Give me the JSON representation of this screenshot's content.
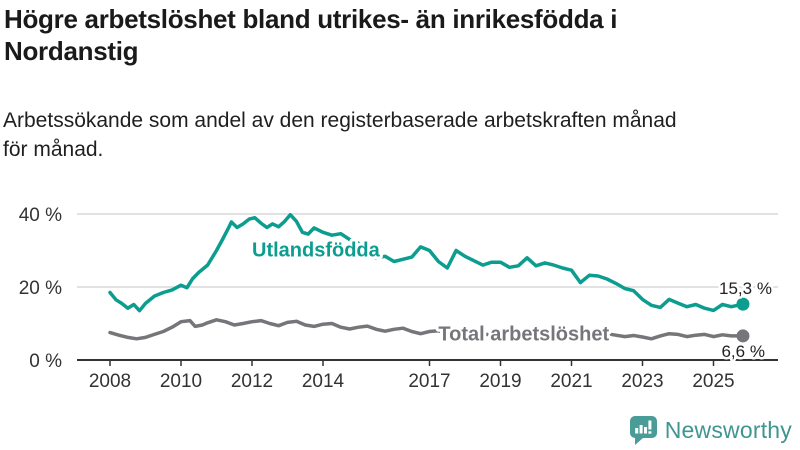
{
  "header": {
    "title_lines": [
      "Högre arbetslöshet bland utrikes- än inrikesfödda i",
      "Nordanstig"
    ],
    "subtitle_lines": [
      "Arbetssökande som andel av den registerbaserade arbetskraften månad",
      "för månad."
    ]
  },
  "chart_data": {
    "type": "line",
    "title": "Högre arbetslöshet bland utrikes- än inrikesfödda i Nordanstig",
    "subtitle": "Arbetssökande som andel av den registerbaserade arbetskraften månad för månad.",
    "xlabel": "",
    "ylabel": "",
    "grid": "horizontal",
    "legend_position": "inline-labels",
    "x_axis": {
      "range": [
        2007.1,
        2026.8
      ],
      "ticks": [
        2008,
        2010,
        2012,
        2014,
        2017,
        2019,
        2021,
        2023,
        2025
      ],
      "tick_labels": [
        "2008",
        "2010",
        "2012",
        "2014",
        "2017",
        "2019",
        "2021",
        "2023",
        "2025"
      ]
    },
    "y_axis": {
      "unit": "%",
      "range": [
        0,
        43
      ],
      "ticks": [
        0,
        20,
        40
      ],
      "tick_labels": [
        "0 %",
        "20 %",
        "40 %"
      ]
    },
    "series": [
      {
        "name": "Utlandsfödda",
        "color": "#0b9d8f",
        "end_label": "15,3 %",
        "end_value": 15.3,
        "label_anchor": {
          "x": 2012.0,
          "y": 30.3
        },
        "points": [
          [
            2008.0,
            18.5
          ],
          [
            2008.17,
            16.5
          ],
          [
            2008.33,
            15.5
          ],
          [
            2008.5,
            14.2
          ],
          [
            2008.67,
            15.2
          ],
          [
            2008.83,
            13.5
          ],
          [
            2009.0,
            15.5
          ],
          [
            2009.25,
            17.5
          ],
          [
            2009.5,
            18.5
          ],
          [
            2009.75,
            19.2
          ],
          [
            2010.0,
            20.5
          ],
          [
            2010.17,
            19.8
          ],
          [
            2010.33,
            22.3
          ],
          [
            2010.5,
            24.0
          ],
          [
            2010.75,
            26.0
          ],
          [
            2011.0,
            30.0
          ],
          [
            2011.17,
            33.0
          ],
          [
            2011.33,
            36.0
          ],
          [
            2011.42,
            37.8
          ],
          [
            2011.58,
            36.3
          ],
          [
            2011.75,
            37.3
          ],
          [
            2011.92,
            38.6
          ],
          [
            2012.08,
            39.0
          ],
          [
            2012.25,
            37.5
          ],
          [
            2012.42,
            36.3
          ],
          [
            2012.58,
            37.3
          ],
          [
            2012.75,
            36.5
          ],
          [
            2012.92,
            38.0
          ],
          [
            2013.08,
            39.8
          ],
          [
            2013.25,
            38.0
          ],
          [
            2013.42,
            35.0
          ],
          [
            2013.58,
            34.5
          ],
          [
            2013.75,
            36.2
          ],
          [
            2014.0,
            35.0
          ],
          [
            2014.25,
            34.2
          ],
          [
            2014.5,
            34.6
          ],
          [
            2014.75,
            33.0
          ],
          [
            2015.0,
            32.0
          ],
          [
            2015.25,
            28.6
          ],
          [
            2015.5,
            28.0
          ],
          [
            2015.75,
            28.4
          ],
          [
            2016.0,
            27.0
          ],
          [
            2016.25,
            27.6
          ],
          [
            2016.5,
            28.2
          ],
          [
            2016.75,
            31.0
          ],
          [
            2017.0,
            30.0
          ],
          [
            2017.25,
            27.0
          ],
          [
            2017.5,
            25.2
          ],
          [
            2017.75,
            30.0
          ],
          [
            2018.0,
            28.4
          ],
          [
            2018.25,
            27.2
          ],
          [
            2018.5,
            26.0
          ],
          [
            2018.75,
            26.8
          ],
          [
            2019.0,
            26.8
          ],
          [
            2019.25,
            25.4
          ],
          [
            2019.5,
            25.8
          ],
          [
            2019.75,
            28.0
          ],
          [
            2020.0,
            25.8
          ],
          [
            2020.25,
            26.6
          ],
          [
            2020.5,
            26.0
          ],
          [
            2020.75,
            25.2
          ],
          [
            2021.0,
            24.6
          ],
          [
            2021.25,
            21.2
          ],
          [
            2021.5,
            23.2
          ],
          [
            2021.75,
            23.0
          ],
          [
            2022.0,
            22.2
          ],
          [
            2022.25,
            21.0
          ],
          [
            2022.5,
            19.6
          ],
          [
            2022.75,
            19.0
          ],
          [
            2023.0,
            16.6
          ],
          [
            2023.25,
            15.0
          ],
          [
            2023.5,
            14.4
          ],
          [
            2023.75,
            16.6
          ],
          [
            2024.0,
            15.6
          ],
          [
            2024.25,
            14.6
          ],
          [
            2024.5,
            15.2
          ],
          [
            2024.75,
            14.2
          ],
          [
            2025.0,
            13.6
          ],
          [
            2025.25,
            15.2
          ],
          [
            2025.5,
            14.6
          ],
          [
            2025.83,
            15.3
          ]
        ]
      },
      {
        "name": "Total arbetslöshet",
        "color": "#76767a",
        "end_label": "6,6 %",
        "end_value": 6.6,
        "label_anchor": {
          "x": 2017.25,
          "y": 7.3
        },
        "points": [
          [
            2008.0,
            7.5
          ],
          [
            2008.25,
            6.8
          ],
          [
            2008.5,
            6.2
          ],
          [
            2008.75,
            5.8
          ],
          [
            2009.0,
            6.2
          ],
          [
            2009.25,
            7.0
          ],
          [
            2009.5,
            7.8
          ],
          [
            2009.75,
            9.0
          ],
          [
            2010.0,
            10.5
          ],
          [
            2010.25,
            10.8
          ],
          [
            2010.4,
            9.2
          ],
          [
            2010.6,
            9.6
          ],
          [
            2010.75,
            10.2
          ],
          [
            2011.0,
            11.0
          ],
          [
            2011.25,
            10.5
          ],
          [
            2011.5,
            9.6
          ],
          [
            2011.75,
            10.0
          ],
          [
            2012.0,
            10.5
          ],
          [
            2012.25,
            10.8
          ],
          [
            2012.5,
            10.0
          ],
          [
            2012.75,
            9.4
          ],
          [
            2013.0,
            10.3
          ],
          [
            2013.25,
            10.6
          ],
          [
            2013.5,
            9.6
          ],
          [
            2013.75,
            9.2
          ],
          [
            2014.0,
            9.8
          ],
          [
            2014.25,
            10.0
          ],
          [
            2014.5,
            9.0
          ],
          [
            2014.75,
            8.5
          ],
          [
            2015.0,
            9.0
          ],
          [
            2015.25,
            9.3
          ],
          [
            2015.5,
            8.4
          ],
          [
            2015.75,
            7.9
          ],
          [
            2016.0,
            8.4
          ],
          [
            2016.25,
            8.7
          ],
          [
            2016.5,
            7.8
          ],
          [
            2016.75,
            7.2
          ],
          [
            2017.0,
            7.8
          ],
          [
            2017.25,
            8.0
          ],
          [
            2017.5,
            7.3
          ],
          [
            2017.75,
            7.1
          ],
          [
            2018.0,
            7.5
          ],
          [
            2018.25,
            7.7
          ],
          [
            2018.5,
            7.1
          ],
          [
            2018.75,
            6.9
          ],
          [
            2019.0,
            7.3
          ],
          [
            2019.25,
            7.5
          ],
          [
            2019.5,
            7.0
          ],
          [
            2019.75,
            6.8
          ],
          [
            2020.0,
            7.4
          ],
          [
            2020.25,
            7.9
          ],
          [
            2020.5,
            7.5
          ],
          [
            2020.75,
            7.1
          ],
          [
            2021.0,
            7.4
          ],
          [
            2021.25,
            7.1
          ],
          [
            2021.5,
            6.8
          ],
          [
            2021.75,
            7.0
          ],
          [
            2022.0,
            7.2
          ],
          [
            2022.25,
            6.8
          ],
          [
            2022.5,
            6.4
          ],
          [
            2022.75,
            6.7
          ],
          [
            2023.0,
            6.3
          ],
          [
            2023.25,
            5.8
          ],
          [
            2023.5,
            6.6
          ],
          [
            2023.75,
            7.2
          ],
          [
            2024.0,
            7.0
          ],
          [
            2024.25,
            6.4
          ],
          [
            2024.5,
            6.8
          ],
          [
            2024.75,
            7.0
          ],
          [
            2025.0,
            6.4
          ],
          [
            2025.25,
            6.9
          ],
          [
            2025.5,
            6.6
          ],
          [
            2025.83,
            6.6
          ]
        ]
      }
    ],
    "style": {
      "grid_color": "#d9d9d9",
      "baseline_color": "#333333",
      "axis_text_color": "#333333",
      "end_label_color": "#222222",
      "background": "#ffffff"
    }
  },
  "footer": {
    "logo_text": "Newsworthy",
    "logo_color": "#3f958f"
  }
}
